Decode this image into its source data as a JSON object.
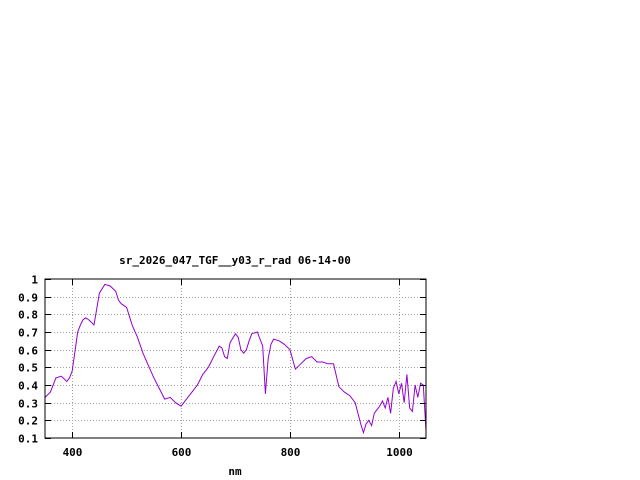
{
  "chart_data": {
    "type": "line",
    "title": "sr_2026_047_TGF__y03_r_rad 06-14-00",
    "xlabel": "nm",
    "ylabel": "",
    "xlim": [
      350,
      1050
    ],
    "ylim": [
      0.1,
      1.0
    ],
    "x_ticks": [
      400,
      600,
      800,
      1000
    ],
    "y_ticks": [
      0.1,
      0.2,
      0.3,
      0.4,
      0.5,
      0.6,
      0.7,
      0.8,
      0.9,
      1
    ],
    "x_tick_labels": [
      "400",
      "600",
      "800",
      "1000"
    ],
    "y_tick_labels": [
      "0.1",
      "0.2",
      "0.3",
      "0.4",
      "0.5",
      "0.6",
      "0.7",
      "0.8",
      "0.9",
      "1"
    ],
    "grid": true,
    "line_color": "#9400d3",
    "series": [
      {
        "x": [
          350,
          360,
          370,
          380,
          390,
          395,
          400,
          410,
          415,
          420,
          425,
          430,
          440,
          450,
          460,
          470,
          480,
          485,
          490,
          500,
          510,
          520,
          530,
          540,
          550,
          560,
          570,
          580,
          590,
          600,
          610,
          620,
          630,
          640,
          650,
          660,
          670,
          675,
          680,
          685,
          690,
          700,
          705,
          710,
          715,
          720,
          725,
          730,
          740,
          750,
          755,
          760,
          765,
          770,
          780,
          790,
          800,
          810,
          820,
          830,
          840,
          850,
          860,
          870,
          880,
          890,
          900,
          910,
          920,
          930,
          935,
          940,
          945,
          950,
          955,
          960,
          965,
          970,
          975,
          980,
          985,
          990,
          995,
          1000,
          1005,
          1010,
          1015,
          1020,
          1025,
          1030,
          1035,
          1040,
          1045,
          1050
        ],
        "y": [
          0.33,
          0.36,
          0.44,
          0.45,
          0.42,
          0.44,
          0.48,
          0.7,
          0.74,
          0.77,
          0.78,
          0.77,
          0.74,
          0.92,
          0.97,
          0.96,
          0.93,
          0.88,
          0.86,
          0.84,
          0.74,
          0.67,
          0.58,
          0.51,
          0.44,
          0.38,
          0.32,
          0.33,
          0.3,
          0.28,
          0.32,
          0.36,
          0.4,
          0.46,
          0.5,
          0.56,
          0.62,
          0.61,
          0.56,
          0.55,
          0.64,
          0.69,
          0.67,
          0.6,
          0.58,
          0.6,
          0.65,
          0.69,
          0.7,
          0.62,
          0.35,
          0.55,
          0.63,
          0.66,
          0.65,
          0.63,
          0.6,
          0.49,
          0.52,
          0.55,
          0.56,
          0.53,
          0.53,
          0.52,
          0.52,
          0.39,
          0.36,
          0.34,
          0.3,
          0.18,
          0.13,
          0.18,
          0.2,
          0.17,
          0.24,
          0.26,
          0.28,
          0.31,
          0.27,
          0.33,
          0.24,
          0.38,
          0.42,
          0.35,
          0.41,
          0.3,
          0.46,
          0.27,
          0.25,
          0.4,
          0.33,
          0.41,
          0.4,
          0.14
        ]
      }
    ]
  }
}
